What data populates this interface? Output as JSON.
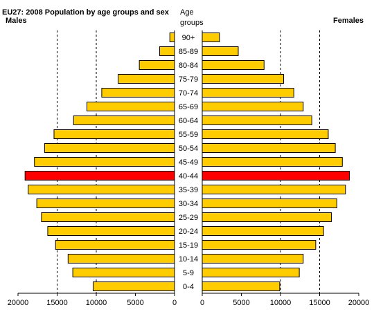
{
  "title": "EU27: 2008 Population by age groups and sex",
  "males_label": "Males",
  "females_label": "Females",
  "center_heading": [
    "Age",
    "groups"
  ],
  "colors": {
    "bar": "#ffcc00",
    "highlight": "#ff0000",
    "outline": "#000000"
  },
  "chart_data": {
    "type": "bar",
    "orientation": "horizontal",
    "layout": "population-pyramid",
    "categories": [
      "0-4",
      "5-9",
      "10-14",
      "15-19",
      "20-24",
      "25-29",
      "30-34",
      "35-39",
      "40-44",
      "45-49",
      "50-54",
      "55-59",
      "60-64",
      "65-69",
      "70-74",
      "75-79",
      "80-84",
      "85-89",
      "90+"
    ],
    "series": [
      {
        "name": "Males",
        "values": [
          10400,
          13000,
          13600,
          15200,
          16200,
          17000,
          17600,
          18700,
          19100,
          17900,
          16600,
          15400,
          12900,
          11200,
          9300,
          7200,
          4500,
          1900,
          600
        ]
      },
      {
        "name": "Females",
        "values": [
          9900,
          12400,
          12900,
          14500,
          15500,
          16500,
          17200,
          18300,
          18800,
          17900,
          17000,
          16100,
          14000,
          12900,
          11700,
          10400,
          7900,
          4600,
          2200
        ]
      }
    ],
    "highlight_category": "40-44",
    "xlim": [
      0,
      20000
    ],
    "xticks": [
      0,
      5000,
      10000,
      15000,
      20000
    ],
    "male_tick_labels": [
      "20000",
      "15000",
      "10000",
      "5000",
      "0"
    ],
    "female_tick_labels": [
      "0",
      "5000",
      "10000",
      "15000",
      "20000"
    ],
    "grid": "dashed vertical at 15000 and 10000 on both sides",
    "xlabel": "",
    "ylabel": ""
  }
}
